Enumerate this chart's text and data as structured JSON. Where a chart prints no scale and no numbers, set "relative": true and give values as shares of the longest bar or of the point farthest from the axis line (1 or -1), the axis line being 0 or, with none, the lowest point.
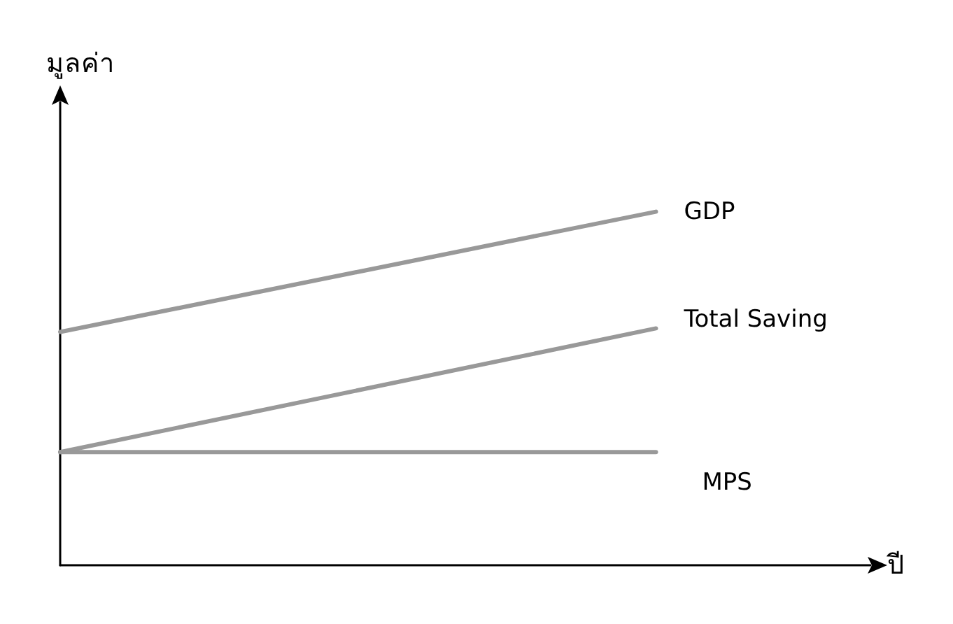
{
  "chart_data": {
    "type": "line",
    "relative": true,
    "xlabel": "ปี",
    "ylabel": "มูลค่า",
    "categories": [
      null,
      null
    ],
    "series": [
      {
        "name": "GDP",
        "color": "#999999",
        "values": [
          0.66,
          1
        ]
      },
      {
        "name": "Total Saving",
        "color": "#999999",
        "values": [
          0.32,
          0.67
        ]
      },
      {
        "name": "MPS",
        "color": "#999999",
        "values": [
          0.32,
          0.32
        ]
      }
    ],
    "grid": false,
    "legend": false,
    "marker": "none",
    "line_style": "solid"
  }
}
